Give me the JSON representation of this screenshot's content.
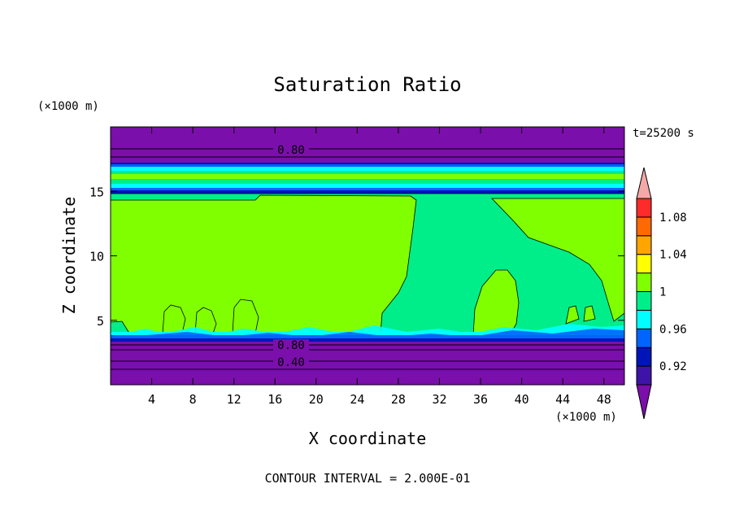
{
  "chart_data": {
    "type": "heatmap",
    "title": "Saturation Ratio",
    "xlabel": "X coordinate",
    "ylabel": "Z coordinate",
    "x_unit": "(×1000 m)",
    "z_unit": "(×1000 m)",
    "time_label": "t=25200 s",
    "footer": "CONTOUR INTERVAL = 2.000E-01",
    "xlim": [
      0,
      50
    ],
    "zlim": [
      0,
      20
    ],
    "x_ticks": [
      4,
      8,
      12,
      16,
      20,
      24,
      28,
      32,
      36,
      40,
      44,
      48
    ],
    "x_tick_labels": [
      "4",
      "8",
      "12",
      "16",
      "20",
      "24",
      "28",
      "32",
      "36",
      "40",
      "44",
      "48"
    ],
    "z_ticks": [
      5,
      10,
      15
    ],
    "z_tick_labels": [
      "5",
      "10",
      "15"
    ],
    "contour_labels": [
      {
        "text": "0.80",
        "x": 17.5,
        "z": 18.1
      },
      {
        "text": "0.80",
        "x": 17.3,
        "z": 3.0
      },
      {
        "text": "0.40",
        "x": 17.3,
        "z": 1.7
      }
    ],
    "colorbar": {
      "levels": [
        0.9,
        0.92,
        0.94,
        0.96,
        0.98,
        1.0,
        1.02,
        1.04,
        1.06,
        1.08,
        1.1
      ],
      "colors": [
        "#7b0fab",
        "#3e14a8",
        "#0015b8",
        "#0064ff",
        "#00ffff",
        "#00ee8a",
        "#80ff00",
        "#ffff00",
        "#ffa500",
        "#ff6a00",
        "#ff2a2a",
        "#f4a8a8"
      ],
      "tick_labels": [
        "0.92",
        "0.96",
        "1",
        "1.04",
        "1.08"
      ],
      "tick_values": [
        0.92,
        0.96,
        1.0,
        1.04,
        1.08
      ]
    }
  }
}
